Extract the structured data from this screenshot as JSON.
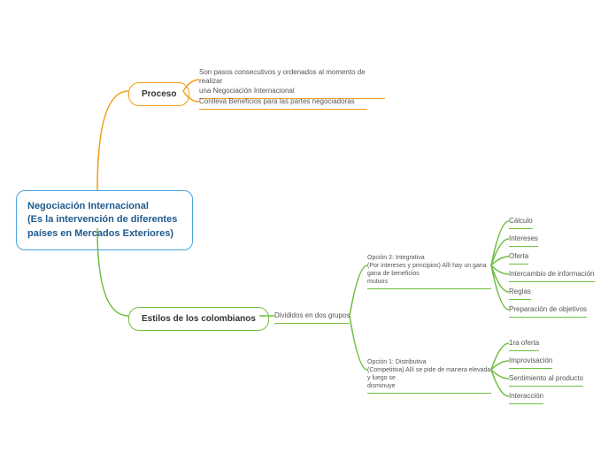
{
  "colors": {
    "root_border": "#4aa3df",
    "root_text": "#1e5a8e",
    "orange": "#f39c12",
    "green": "#6fbf3f",
    "bg": "#ffffff"
  },
  "root": {
    "lines": [
      "Negociación Internacional",
      "(Es la intervención de diferentes",
      "países en Mercados Exteriores)"
    ]
  },
  "proceso": {
    "label": "Proceso",
    "leaves": [
      "Son pasos consecutivos y ordenados al momento de realizar\nuna Negociación Internacional",
      "Conlleva Beneficios para las partes negociadoras"
    ]
  },
  "estilos": {
    "label": "Estilos de los colombianos",
    "sub": "Divididos en dos grupos",
    "opcion2": {
      "label": "Opción 2: Integrativa\n(Por intereses y principios) Allí hay un gana gana de beneficios\nmutuos",
      "leaves": [
        "Cálculo",
        "Intereses",
        "Oferta",
        "Intercambio de información",
        "Reglas",
        "Preparación de objetivos"
      ]
    },
    "opcion1": {
      "label": "Opción 1: Distributiva\n(Competitiva) Allí se pide de manera elevada y luego se\ndisminuye",
      "leaves": [
        "1ra oferta",
        "Improvisación",
        "Sentimiento al producto",
        "Interacción"
      ]
    }
  }
}
